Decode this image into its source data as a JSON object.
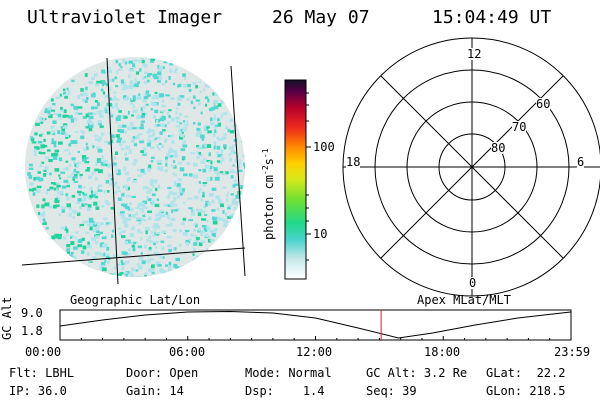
{
  "header": {
    "title": "Ultraviolet Imager",
    "date": "26 May 07",
    "time": "15:04:49 UT"
  },
  "colorbar": {
    "unit_label": "photon cm",
    "unit_exp1": "-2",
    "unit_mid": "s",
    "unit_exp2": "-1",
    "ticks": [
      "100",
      "10"
    ]
  },
  "polar_plot": {
    "mlt_labels": {
      "top": "12",
      "left": "18",
      "right": "6",
      "bottom": "0"
    },
    "lat_labels": [
      "60",
      "70",
      "80"
    ]
  },
  "map_labels": {
    "left": "Geographic Lat/Lon",
    "right": "Apex MLat/MLT"
  },
  "altitude_plot": {
    "ylabel": "GC Alt",
    "yticks": [
      "9.0",
      "1.8"
    ],
    "xticks": [
      "00:00",
      "06:00",
      "12:00",
      "18:00",
      "23:59"
    ],
    "marker_time": "15:04:49"
  },
  "status": {
    "flt_label": "Flt:",
    "flt_value": "LBHL",
    "ip_label": "IP:",
    "ip_value": "36.0",
    "door_label": "Door:",
    "door_value": "Open",
    "gain_label": "Gain:",
    "gain_value": "14",
    "mode_label": "Mode:",
    "mode_value": "Normal",
    "dsp_label": "Dsp:",
    "dsp_value": "1.4",
    "gcalt_label": "GC Alt:",
    "gcalt_value": "3.2 Re",
    "seq_label": "Seq:",
    "seq_value": "39",
    "glat_label": "GLat:",
    "glat_value": "22.2",
    "glon_label": "GLon:",
    "glon_value": "218.5"
  },
  "colors": {
    "text": "#000000",
    "earth_base": "#dfe7e7",
    "aurora_light": "#aee4ea",
    "aurora_mid": "#52d8d0",
    "aurora_strong": "#22d49c",
    "marker": "#e02020"
  }
}
